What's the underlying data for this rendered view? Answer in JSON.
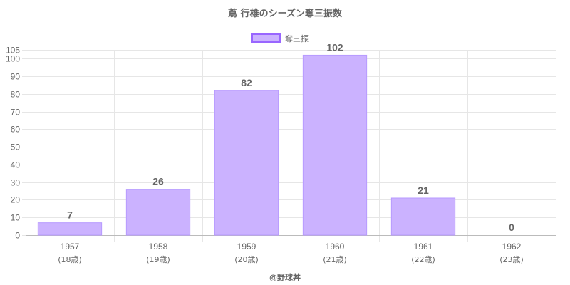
{
  "chart_data": {
    "type": "bar",
    "title": "蔦 行雄のシーズン奪三振数",
    "categories": [
      "1957",
      "1958",
      "1959",
      "1960",
      "1961",
      "1962"
    ],
    "category_sublabels": [
      "(18歳)",
      "(19歳)",
      "(20歳)",
      "(21歳)",
      "(22歳)",
      "(23歳)"
    ],
    "series": [
      {
        "name": "奪三振",
        "values": [
          7,
          26,
          82,
          102,
          21,
          0
        ]
      }
    ],
    "yticks": [
      0,
      10,
      20,
      30,
      40,
      50,
      60,
      70,
      80,
      90,
      100,
      105
    ],
    "ylim": [
      0,
      105
    ],
    "grid": true,
    "legend_position": "top-center",
    "colors": {
      "bar_fill": "#cbb2ff",
      "bar_stroke": "#b79aff",
      "legend_stroke": "#9966ff",
      "grid": "#e6e6e6",
      "text": "#666666"
    }
  },
  "footer": {
    "credit": "@野球丼"
  }
}
